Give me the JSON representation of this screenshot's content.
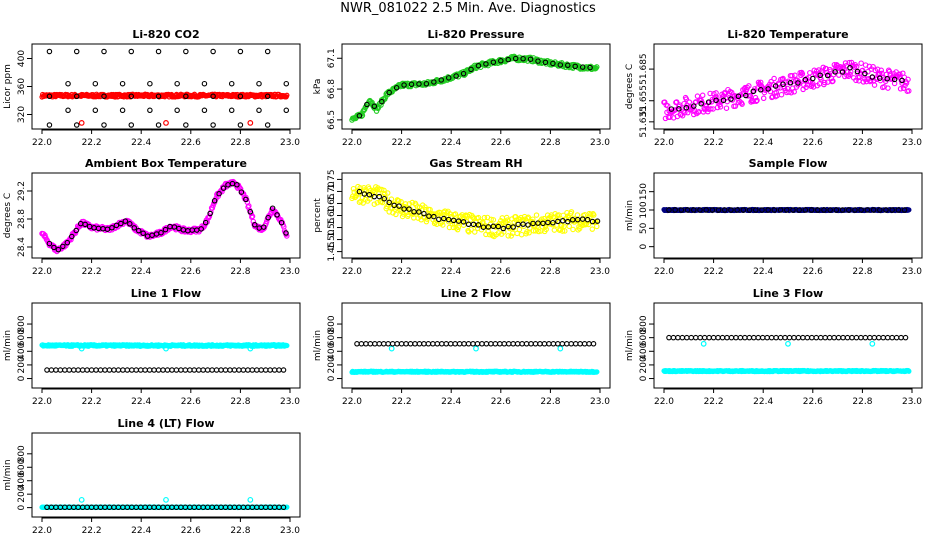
{
  "title": "NWR_081022  2.5 Min. Ave. Diagnostics",
  "colors": {
    "red": "#ff0000",
    "green": "#22cc22",
    "magenta": "#ff00ff",
    "yellow": "#ffff00",
    "blue": "#000080",
    "cyan": "#00ffff",
    "black": "#000000"
  },
  "chart_data": [
    {
      "type": "scatter",
      "title": "Li-820 CO2",
      "ylabel": "Licor ppm",
      "xlim": [
        22.0,
        23.0
      ],
      "xticks": [
        "22.0",
        "22.2",
        "22.4",
        "22.6",
        "22.8",
        "23.0"
      ],
      "ylim": [
        305,
        415
      ],
      "yticks": [
        "320",
        "360",
        "400"
      ],
      "series": [
        {
          "name": "data",
          "color": "red",
          "pattern": "band",
          "level": 347,
          "spread": 2,
          "points": [
            [
              22.16,
              308
            ],
            [
              22.5,
              308
            ],
            [
              22.84,
              308
            ]
          ]
        },
        {
          "name": "cal",
          "color": "black",
          "pattern": "grid",
          "levels": [
            302,
            326,
            346,
            364,
            410
          ]
        }
      ]
    },
    {
      "type": "scatter",
      "title": "Li-820 Pressure",
      "ylabel": "kPa",
      "xlim": [
        22.0,
        23.0
      ],
      "xticks": [
        "22.0",
        "22.2",
        "22.4",
        "22.6",
        "22.8",
        "23.0"
      ],
      "ylim": [
        66.45,
        67.2
      ],
      "yticks": [
        "66.5",
        "66.8",
        "67.1"
      ],
      "series": [
        {
          "name": "data",
          "color": "green",
          "pattern": "curve",
          "spread": 0.02,
          "path": [
            [
              22.0,
              66.5
            ],
            [
              22.04,
              66.55
            ],
            [
              22.07,
              66.7
            ],
            [
              22.1,
              66.6
            ],
            [
              22.14,
              66.75
            ],
            [
              22.2,
              66.84
            ],
            [
              22.3,
              66.85
            ],
            [
              22.38,
              66.9
            ],
            [
              22.45,
              66.95
            ],
            [
              22.5,
              67.02
            ],
            [
              22.57,
              67.06
            ],
            [
              22.65,
              67.1
            ],
            [
              22.72,
              67.09
            ],
            [
              22.8,
              67.05
            ],
            [
              22.9,
              67.02
            ],
            [
              22.99,
              67.0
            ]
          ]
        },
        {
          "name": "cal",
          "color": "black",
          "pattern": "ontrack",
          "step": 0.03
        }
      ]
    },
    {
      "type": "scatter",
      "title": "Li-820 Temperature",
      "ylabel": "degrees C",
      "xlim": [
        22.0,
        23.0
      ],
      "xticks": [
        "22.0",
        "22.2",
        "22.4",
        "22.6",
        "22.8",
        "23.0"
      ],
      "ylim": [
        51.632,
        51.705
      ],
      "yticks": [
        "51.635",
        "51.655",
        "51.685"
      ],
      "series": [
        {
          "name": "data",
          "color": "magenta",
          "pattern": "curve",
          "spread": 0.009,
          "path": [
            [
              22.0,
              51.646
            ],
            [
              22.2,
              51.654
            ],
            [
              22.4,
              51.665
            ],
            [
              22.6,
              51.676
            ],
            [
              22.75,
              51.685
            ],
            [
              22.85,
              51.678
            ],
            [
              22.99,
              51.672
            ]
          ]
        },
        {
          "name": "cal",
          "color": "black",
          "pattern": "ontrack",
          "step": 0.03
        }
      ]
    },
    {
      "type": "scatter",
      "title": "Ambient Box Temperature",
      "ylabel": "degrees C",
      "xlim": [
        22.0,
        23.0
      ],
      "xticks": [
        "22.0",
        "22.2",
        "22.4",
        "22.6",
        "22.8",
        "23.0"
      ],
      "ylim": [
        28.3,
        29.4
      ],
      "yticks": [
        "28.4",
        "28.8",
        "29.2"
      ],
      "series": [
        {
          "name": "data",
          "color": "magenta",
          "pattern": "curve",
          "spread": 0.03,
          "path": [
            [
              22.0,
              28.6
            ],
            [
              22.03,
              28.45
            ],
            [
              22.06,
              28.35
            ],
            [
              22.1,
              28.45
            ],
            [
              22.13,
              28.6
            ],
            [
              22.16,
              28.75
            ],
            [
              22.2,
              28.68
            ],
            [
              22.27,
              28.65
            ],
            [
              22.34,
              28.78
            ],
            [
              22.38,
              28.65
            ],
            [
              22.43,
              28.55
            ],
            [
              22.48,
              28.6
            ],
            [
              22.52,
              28.7
            ],
            [
              22.58,
              28.63
            ],
            [
              22.64,
              28.65
            ],
            [
              22.67,
              28.8
            ],
            [
              22.7,
              29.1
            ],
            [
              22.74,
              29.28
            ],
            [
              22.78,
              29.32
            ],
            [
              22.82,
              29.1
            ],
            [
              22.86,
              28.7
            ],
            [
              22.89,
              28.65
            ],
            [
              22.93,
              28.95
            ],
            [
              22.96,
              28.8
            ],
            [
              22.99,
              28.55
            ]
          ]
        },
        {
          "name": "cal",
          "color": "black",
          "pattern": "ontrack",
          "step": 0.018
        }
      ]
    },
    {
      "type": "scatter",
      "title": "Gas Stream RH",
      "ylabel": "percent",
      "xlim": [
        22.0,
        23.0
      ],
      "xticks": [
        "22.0",
        "22.2",
        "22.4",
        "22.6",
        "22.8",
        "23.0"
      ],
      "ylim": [
        1.44,
        1.76
      ],
      "yticks": [
        "1.45",
        "1.50",
        "1.55",
        "1.60",
        "1.65",
        "1.70",
        "1.75"
      ],
      "series": [
        {
          "name": "data",
          "color": "yellow",
          "pattern": "curve",
          "spread": 0.04,
          "path": [
            [
              22.0,
              1.7
            ],
            [
              22.1,
              1.68
            ],
            [
              22.2,
              1.63
            ],
            [
              22.3,
              1.6
            ],
            [
              22.4,
              1.58
            ],
            [
              22.5,
              1.56
            ],
            [
              22.6,
              1.55
            ],
            [
              22.7,
              1.56
            ],
            [
              22.8,
              1.57
            ],
            [
              22.9,
              1.58
            ],
            [
              22.99,
              1.58
            ]
          ]
        },
        {
          "name": "cal",
          "color": "black",
          "pattern": "ontrack",
          "step": 0.02
        }
      ]
    },
    {
      "type": "scatter",
      "title": "Sample Flow",
      "ylabel": "ml/min",
      "xlim": [
        22.0,
        23.0
      ],
      "xticks": [
        "22.0",
        "22.2",
        "22.4",
        "22.6",
        "22.8",
        "23.0"
      ],
      "ylim": [
        -20,
        190
      ],
      "yticks": [
        "0",
        "50",
        "100",
        "150"
      ],
      "series": [
        {
          "name": "data",
          "color": "blue",
          "pattern": "band",
          "level": 100,
          "spread": 1.5,
          "points": []
        },
        {
          "name": "cal",
          "color": "black",
          "pattern": "flatline",
          "level": 100,
          "step": 0.025
        }
      ]
    },
    {
      "type": "scatter",
      "title": "Line 1 Flow",
      "ylabel": "ml/min",
      "xlim": [
        22.0,
        23.0
      ],
      "xticks": [
        "22.0",
        "22.2",
        "22.4",
        "22.6",
        "22.8",
        "23.0"
      ],
      "ylim": [
        -80,
        1050
      ],
      "yticks": [
        "0",
        "200",
        "400",
        "600",
        "800"
      ],
      "series": [
        {
          "name": "data",
          "color": "cyan",
          "pattern": "band",
          "level": 485,
          "spread": 12,
          "points": [
            [
              22.16,
              440
            ],
            [
              22.5,
              440
            ],
            [
              22.84,
              440
            ]
          ]
        },
        {
          "name": "cal",
          "color": "black",
          "pattern": "flatline",
          "level": 125,
          "step": 0.018
        }
      ]
    },
    {
      "type": "scatter",
      "title": "Line 2 Flow",
      "ylabel": "ml/min",
      "xlim": [
        22.0,
        23.0
      ],
      "xticks": [
        "22.0",
        "22.2",
        "22.4",
        "22.6",
        "22.8",
        "23.0"
      ],
      "ylim": [
        -80,
        1050
      ],
      "yticks": [
        "0",
        "200",
        "400",
        "600",
        "800"
      ],
      "series": [
        {
          "name": "data",
          "color": "cyan",
          "pattern": "band",
          "level": 100,
          "spread": 8,
          "points": [
            [
              22.16,
              440
            ],
            [
              22.5,
              440
            ],
            [
              22.84,
              440
            ]
          ]
        },
        {
          "name": "cal",
          "color": "black",
          "pattern": "flatline",
          "level": 510,
          "step": 0.018
        }
      ]
    },
    {
      "type": "scatter",
      "title": "Line 3 Flow",
      "ylabel": "ml/min",
      "xlim": [
        22.0,
        23.0
      ],
      "xticks": [
        "22.0",
        "22.2",
        "22.4",
        "22.6",
        "22.8",
        "23.0"
      ],
      "ylim": [
        -80,
        1050
      ],
      "yticks": [
        "0",
        "200",
        "400",
        "600",
        "800"
      ],
      "series": [
        {
          "name": "data",
          "color": "cyan",
          "pattern": "band",
          "level": 110,
          "spread": 8,
          "points": [
            [
              22.16,
              510
            ],
            [
              22.5,
              510
            ],
            [
              22.84,
              510
            ]
          ]
        },
        {
          "name": "cal",
          "color": "black",
          "pattern": "flatline",
          "level": 600,
          "step": 0.018
        }
      ]
    },
    {
      "type": "scatter",
      "title": "Line 4 (LT) Flow",
      "ylabel": "ml/min",
      "xlim": [
        22.0,
        23.0
      ],
      "xticks": [
        "22.0",
        "22.2",
        "22.4",
        "22.6",
        "22.8",
        "23.0"
      ],
      "ylim": [
        -80,
        1050
      ],
      "yticks": [
        "0",
        "200",
        "400",
        "600",
        "800"
      ],
      "series": [
        {
          "name": "data",
          "color": "cyan",
          "pattern": "band",
          "level": 5,
          "spread": 3,
          "points": [
            [
              22.16,
              115
            ],
            [
              22.5,
              115
            ],
            [
              22.84,
              115
            ]
          ]
        },
        {
          "name": "cal",
          "color": "black",
          "pattern": "flatline",
          "level": 5,
          "step": 0.018
        }
      ]
    }
  ]
}
